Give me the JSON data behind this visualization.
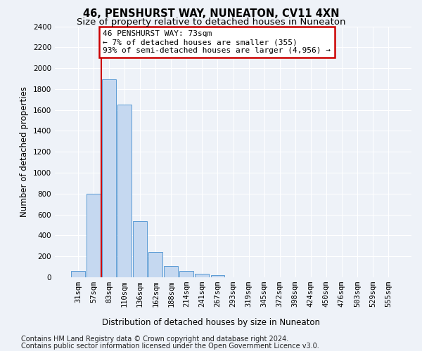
{
  "title": "46, PENSHURST WAY, NUNEATON, CV11 4XN",
  "subtitle": "Size of property relative to detached houses in Nuneaton",
  "xlabel": "Distribution of detached houses by size in Nuneaton",
  "ylabel": "Number of detached properties",
  "bin_labels": [
    "31sqm",
    "57sqm",
    "83sqm",
    "110sqm",
    "136sqm",
    "162sqm",
    "188sqm",
    "214sqm",
    "241sqm",
    "267sqm",
    "293sqm",
    "319sqm",
    "345sqm",
    "372sqm",
    "398sqm",
    "424sqm",
    "450sqm",
    "476sqm",
    "503sqm",
    "529sqm",
    "555sqm"
  ],
  "bar_values": [
    60,
    800,
    1890,
    1650,
    535,
    240,
    110,
    60,
    35,
    20,
    0,
    0,
    0,
    0,
    0,
    0,
    0,
    0,
    0,
    0,
    0
  ],
  "bar_color": "#c5d8f0",
  "bar_edge_color": "#5b9bd5",
  "ref_line_x": 1.5,
  "ylim": [
    0,
    2400
  ],
  "yticks": [
    0,
    200,
    400,
    600,
    800,
    1000,
    1200,
    1400,
    1600,
    1800,
    2000,
    2200,
    2400
  ],
  "annotation_text": "46 PENSHURST WAY: 73sqm\n← 7% of detached houses are smaller (355)\n93% of semi-detached houses are larger (4,956) →",
  "annotation_box_color": "#ffffff",
  "annotation_box_edge": "#cc0000",
  "ref_line_color": "#cc0000",
  "footnote1": "Contains HM Land Registry data © Crown copyright and database right 2024.",
  "footnote2": "Contains public sector information licensed under the Open Government Licence v3.0.",
  "bg_color": "#eef2f8",
  "plot_bg_color": "#eef2f8",
  "grid_color": "#ffffff",
  "title_fontsize": 10.5,
  "subtitle_fontsize": 9.5,
  "axis_label_fontsize": 8.5,
  "tick_fontsize": 7.5,
  "annot_fontsize": 8,
  "footnote_fontsize": 7
}
